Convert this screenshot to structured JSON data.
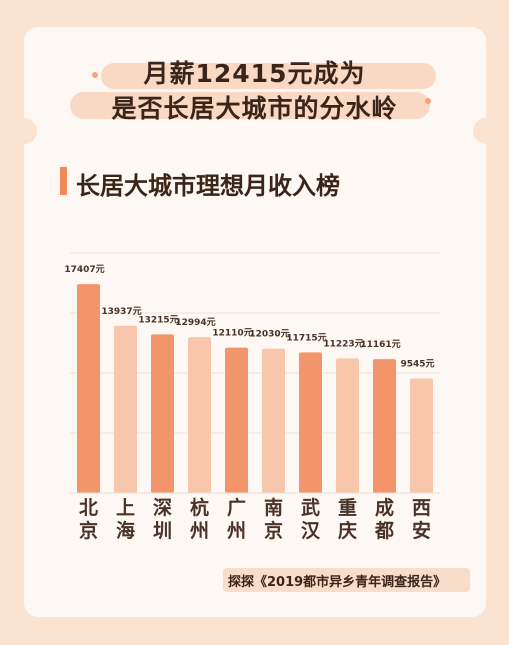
{
  "title": {
    "line1": "月薪12415元成为",
    "line2": "是否长居大城市的分水岭"
  },
  "section_title": "长居大城市理想月收入榜",
  "source": "探探《2019都市异乡青年调查报告》",
  "colors": {
    "dark_bar": "#f2956a",
    "light_bar": "#f7c6ab",
    "accent": "#f08a5a"
  },
  "chart_data": {
    "type": "bar",
    "title": "长居大城市理想月收入榜",
    "categories": [
      "北京",
      "上海",
      "深圳",
      "杭州",
      "广州",
      "南京",
      "武汉",
      "重庆",
      "成都",
      "西安"
    ],
    "values": [
      17407,
      13937,
      13215,
      12994,
      12110,
      12030,
      11715,
      11223,
      11161,
      9545
    ],
    "labels": [
      "17407元",
      "13937元",
      "13215元",
      "12994元",
      "12110元",
      "12030元",
      "11715元",
      "11223元",
      "11161元",
      "9545元"
    ],
    "ylim": [
      0,
      20000
    ],
    "grid": true,
    "xlabel": "",
    "ylabel": ""
  }
}
